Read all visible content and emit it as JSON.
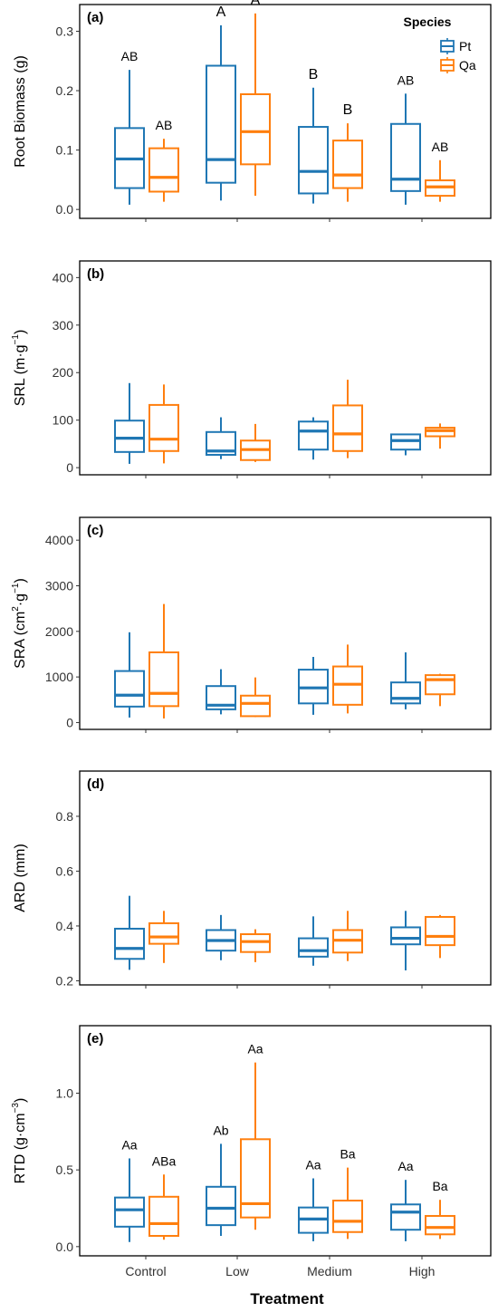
{
  "colors": {
    "Pt": "#1f77b4",
    "Qa": "#ff7f0e"
  },
  "legend": {
    "title": "Species",
    "items": [
      "Pt",
      "Qa"
    ]
  },
  "xlabel": "Treatment",
  "chart_data": [
    {
      "type": "box",
      "panel": "(a)",
      "ylabel": "Root Biomass (g)",
      "ylim": [
        -0.015,
        0.345
      ],
      "yticks": [
        0.0,
        0.1,
        0.2,
        0.3
      ],
      "ytick_labels": [
        "0.0",
        "0.1",
        "0.2",
        "0.3"
      ],
      "categories": [
        "Control",
        "Low",
        "Medium",
        "High"
      ],
      "legend_position": "top-right",
      "series": [
        {
          "name": "Pt",
          "boxes": [
            {
              "min": 0.008,
              "q1": 0.036,
              "median": 0.085,
              "q3": 0.137,
              "max": 0.235
            },
            {
              "min": 0.015,
              "q1": 0.045,
              "median": 0.084,
              "q3": 0.242,
              "max": 0.31
            },
            {
              "min": 0.01,
              "q1": 0.027,
              "median": 0.064,
              "q3": 0.139,
              "max": 0.205
            },
            {
              "min": 0.008,
              "q1": 0.031,
              "median": 0.051,
              "q3": 0.144,
              "max": 0.195
            }
          ],
          "letters": [
            "AB",
            "A",
            "B",
            "AB"
          ]
        },
        {
          "name": "Qa",
          "boxes": [
            {
              "min": 0.013,
              "q1": 0.03,
              "median": 0.054,
              "q3": 0.103,
              "max": 0.119
            },
            {
              "min": 0.023,
              "q1": 0.076,
              "median": 0.131,
              "q3": 0.194,
              "max": 0.33
            },
            {
              "min": 0.013,
              "q1": 0.036,
              "median": 0.058,
              "q3": 0.116,
              "max": 0.145
            },
            {
              "min": 0.013,
              "q1": 0.023,
              "median": 0.038,
              "q3": 0.049,
              "max": 0.083
            }
          ],
          "letters": [
            "AB",
            "A",
            "B",
            "AB"
          ]
        }
      ]
    },
    {
      "type": "box",
      "panel": "(b)",
      "ylabel": "SRL (m·g",
      "ylabel_sup": "−1",
      "ylabel_end": ")",
      "ylim": [
        -15,
        435
      ],
      "yticks": [
        0,
        100,
        200,
        300,
        400
      ],
      "ytick_labels": [
        "0",
        "100",
        "200",
        "300",
        "400"
      ],
      "categories": [
        "Control",
        "Low",
        "Medium",
        "High"
      ],
      "series": [
        {
          "name": "Pt",
          "boxes": [
            {
              "min": 8,
              "q1": 33,
              "median": 62,
              "q3": 99,
              "max": 178
            },
            {
              "min": 18,
              "q1": 27,
              "median": 35,
              "q3": 75,
              "max": 106
            },
            {
              "min": 17,
              "q1": 38,
              "median": 77,
              "q3": 97,
              "max": 106
            },
            {
              "min": 26,
              "q1": 38,
              "median": 57,
              "q3": 70,
              "max": 70
            }
          ],
          "letters": []
        },
        {
          "name": "Qa",
          "boxes": [
            {
              "min": 9,
              "q1": 35,
              "median": 60,
              "q3": 132,
              "max": 175
            },
            {
              "min": 12,
              "q1": 16,
              "median": 38,
              "q3": 57,
              "max": 92
            },
            {
              "min": 20,
              "q1": 35,
              "median": 71,
              "q3": 131,
              "max": 185
            },
            {
              "min": 40,
              "q1": 66,
              "median": 78,
              "q3": 84,
              "max": 93
            }
          ],
          "letters": []
        }
      ]
    },
    {
      "type": "box",
      "panel": "(c)",
      "ylabel": "SRA (cm",
      "ylabel_sup": "2",
      "ylabel_mid": "·g",
      "ylabel_sup2": "−1",
      "ylabel_end": ")",
      "ylim": [
        -150,
        4500
      ],
      "yticks": [
        0,
        1000,
        2000,
        3000,
        4000
      ],
      "ytick_labels": [
        "0",
        "1000",
        "2000",
        "3000",
        "4000"
      ],
      "categories": [
        "Control",
        "Low",
        "Medium",
        "High"
      ],
      "series": [
        {
          "name": "Pt",
          "boxes": [
            {
              "min": 110,
              "q1": 350,
              "median": 600,
              "q3": 1130,
              "max": 1980
            },
            {
              "min": 180,
              "q1": 290,
              "median": 380,
              "q3": 800,
              "max": 1170
            },
            {
              "min": 170,
              "q1": 420,
              "median": 760,
              "q3": 1160,
              "max": 1440
            },
            {
              "min": 290,
              "q1": 420,
              "median": 530,
              "q3": 880,
              "max": 1540
            }
          ],
          "letters": []
        },
        {
          "name": "Qa",
          "boxes": [
            {
              "min": 90,
              "q1": 360,
              "median": 640,
              "q3": 1540,
              "max": 2600
            },
            {
              "min": 120,
              "q1": 140,
              "median": 420,
              "q3": 590,
              "max": 990
            },
            {
              "min": 200,
              "q1": 390,
              "median": 840,
              "q3": 1230,
              "max": 1710
            },
            {
              "min": 360,
              "q1": 620,
              "median": 940,
              "q3": 1040,
              "max": 1070
            }
          ],
          "letters": []
        }
      ]
    },
    {
      "type": "box",
      "panel": "(d)",
      "ylabel": "ARD (mm)",
      "ylim": [
        0.185,
        0.965
      ],
      "yticks": [
        0.2,
        0.4,
        0.6,
        0.8
      ],
      "ytick_labels": [
        "0.2",
        "0.4",
        "0.6",
        "0.8"
      ],
      "categories": [
        "Control",
        "Low",
        "Medium",
        "High"
      ],
      "series": [
        {
          "name": "Pt",
          "boxes": [
            {
              "min": 0.24,
              "q1": 0.28,
              "median": 0.318,
              "q3": 0.39,
              "max": 0.51
            },
            {
              "min": 0.275,
              "q1": 0.31,
              "median": 0.347,
              "q3": 0.385,
              "max": 0.44
            },
            {
              "min": 0.255,
              "q1": 0.288,
              "median": 0.31,
              "q3": 0.355,
              "max": 0.435
            },
            {
              "min": 0.238,
              "q1": 0.333,
              "median": 0.355,
              "q3": 0.395,
              "max": 0.455
            }
          ],
          "letters": []
        },
        {
          "name": "Qa",
          "boxes": [
            {
              "min": 0.265,
              "q1": 0.335,
              "median": 0.36,
              "q3": 0.41,
              "max": 0.455
            },
            {
              "min": 0.268,
              "q1": 0.305,
              "median": 0.343,
              "q3": 0.37,
              "max": 0.388
            },
            {
              "min": 0.272,
              "q1": 0.303,
              "median": 0.348,
              "q3": 0.385,
              "max": 0.455
            },
            {
              "min": 0.283,
              "q1": 0.33,
              "median": 0.362,
              "q3": 0.433,
              "max": 0.44
            }
          ],
          "letters": []
        }
      ]
    },
    {
      "type": "box",
      "panel": "(e)",
      "ylabel": "RTD (g·cm",
      "ylabel_sup": "−3",
      "ylabel_end": ")",
      "ylim": [
        -0.06,
        1.44
      ],
      "yticks": [
        0.0,
        0.5,
        1.0
      ],
      "ytick_labels": [
        "0.0",
        "0.5",
        "1.0"
      ],
      "categories": [
        "Control",
        "Low",
        "Medium",
        "High"
      ],
      "series": [
        {
          "name": "Pt",
          "boxes": [
            {
              "min": 0.03,
              "q1": 0.13,
              "median": 0.24,
              "q3": 0.32,
              "max": 0.575
            },
            {
              "min": 0.07,
              "q1": 0.14,
              "median": 0.25,
              "q3": 0.39,
              "max": 0.67
            },
            {
              "min": 0.035,
              "q1": 0.09,
              "median": 0.18,
              "q3": 0.255,
              "max": 0.445
            },
            {
              "min": 0.035,
              "q1": 0.11,
              "median": 0.225,
              "q3": 0.275,
              "max": 0.435
            }
          ],
          "letters": [
            "Aa",
            "Ab",
            "Aa",
            "Aa"
          ]
        },
        {
          "name": "Qa",
          "boxes": [
            {
              "min": 0.045,
              "q1": 0.07,
              "median": 0.15,
              "q3": 0.325,
              "max": 0.47
            },
            {
              "min": 0.11,
              "q1": 0.19,
              "median": 0.28,
              "q3": 0.7,
              "max": 1.2
            },
            {
              "min": 0.05,
              "q1": 0.095,
              "median": 0.165,
              "q3": 0.3,
              "max": 0.515
            },
            {
              "min": 0.05,
              "q1": 0.08,
              "median": 0.125,
              "q3": 0.2,
              "max": 0.305
            }
          ],
          "letters": [
            "ABa",
            "Aa",
            "Ba",
            "Ba"
          ]
        }
      ]
    }
  ]
}
